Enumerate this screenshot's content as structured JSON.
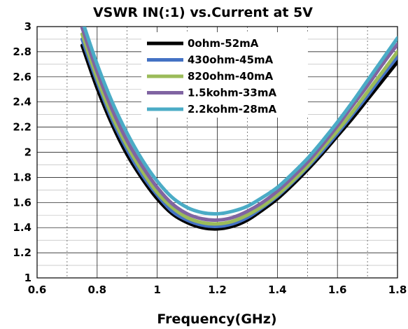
{
  "chart_data": {
    "type": "line",
    "title": "VSWR IN(:1) vs.Current at 5V",
    "xlabel": "Frequency(GHz)",
    "ylabel": "",
    "xlim": [
      0.6,
      1.8
    ],
    "ylim": [
      1,
      3
    ],
    "x_ticks": [
      "0.6",
      "0.8",
      "1",
      "1.2",
      "1.4",
      "1.6",
      "1.8"
    ],
    "y_ticks": [
      "1",
      "1.2",
      "1.4",
      "1.6",
      "1.8",
      "2",
      "2.2",
      "2.4",
      "2.6",
      "2.8",
      "3"
    ],
    "grid": true,
    "legend_position": "top-center",
    "x": [
      0.75,
      0.8,
      0.85,
      0.9,
      0.95,
      1.0,
      1.05,
      1.1,
      1.15,
      1.2,
      1.25,
      1.3,
      1.35,
      1.4,
      1.45,
      1.5,
      1.55,
      1.6,
      1.65,
      1.7,
      1.75,
      1.8
    ],
    "series": [
      {
        "name": "0ohm-52mA",
        "color": "#000000",
        "values": [
          2.85,
          2.51,
          2.22,
          1.98,
          1.79,
          1.63,
          1.51,
          1.44,
          1.4,
          1.39,
          1.41,
          1.46,
          1.54,
          1.63,
          1.74,
          1.86,
          1.99,
          2.13,
          2.27,
          2.42,
          2.57,
          2.72
        ]
      },
      {
        "name": "430ohm-45mA",
        "color": "#4472c4",
        "values": [
          2.9,
          2.56,
          2.26,
          2.02,
          1.82,
          1.66,
          1.53,
          1.46,
          1.42,
          1.41,
          1.43,
          1.48,
          1.56,
          1.65,
          1.76,
          1.88,
          2.01,
          2.15,
          2.3,
          2.45,
          2.61,
          2.76
        ]
      },
      {
        "name": "820ohm-40mA",
        "color": "#9bbb59",
        "values": [
          2.94,
          2.59,
          2.29,
          2.05,
          1.85,
          1.68,
          1.56,
          1.48,
          1.44,
          1.43,
          1.45,
          1.5,
          1.57,
          1.66,
          1.77,
          1.89,
          2.03,
          2.17,
          2.32,
          2.48,
          2.64,
          2.8
        ]
      },
      {
        "name": "1.5kohm-33mA",
        "color": "#8064a2",
        "values": [
          2.99,
          2.64,
          2.34,
          2.09,
          1.89,
          1.72,
          1.59,
          1.51,
          1.47,
          1.46,
          1.48,
          1.53,
          1.6,
          1.69,
          1.8,
          1.92,
          2.06,
          2.21,
          2.37,
          2.53,
          2.7,
          2.86
        ]
      },
      {
        "name": "2.2kohm-28mA",
        "color": "#4bacc6",
        "values": [
          3.05,
          2.7,
          2.4,
          2.15,
          1.94,
          1.77,
          1.64,
          1.56,
          1.52,
          1.51,
          1.53,
          1.57,
          1.64,
          1.72,
          1.83,
          1.95,
          2.09,
          2.24,
          2.4,
          2.57,
          2.74,
          2.91
        ]
      }
    ]
  }
}
